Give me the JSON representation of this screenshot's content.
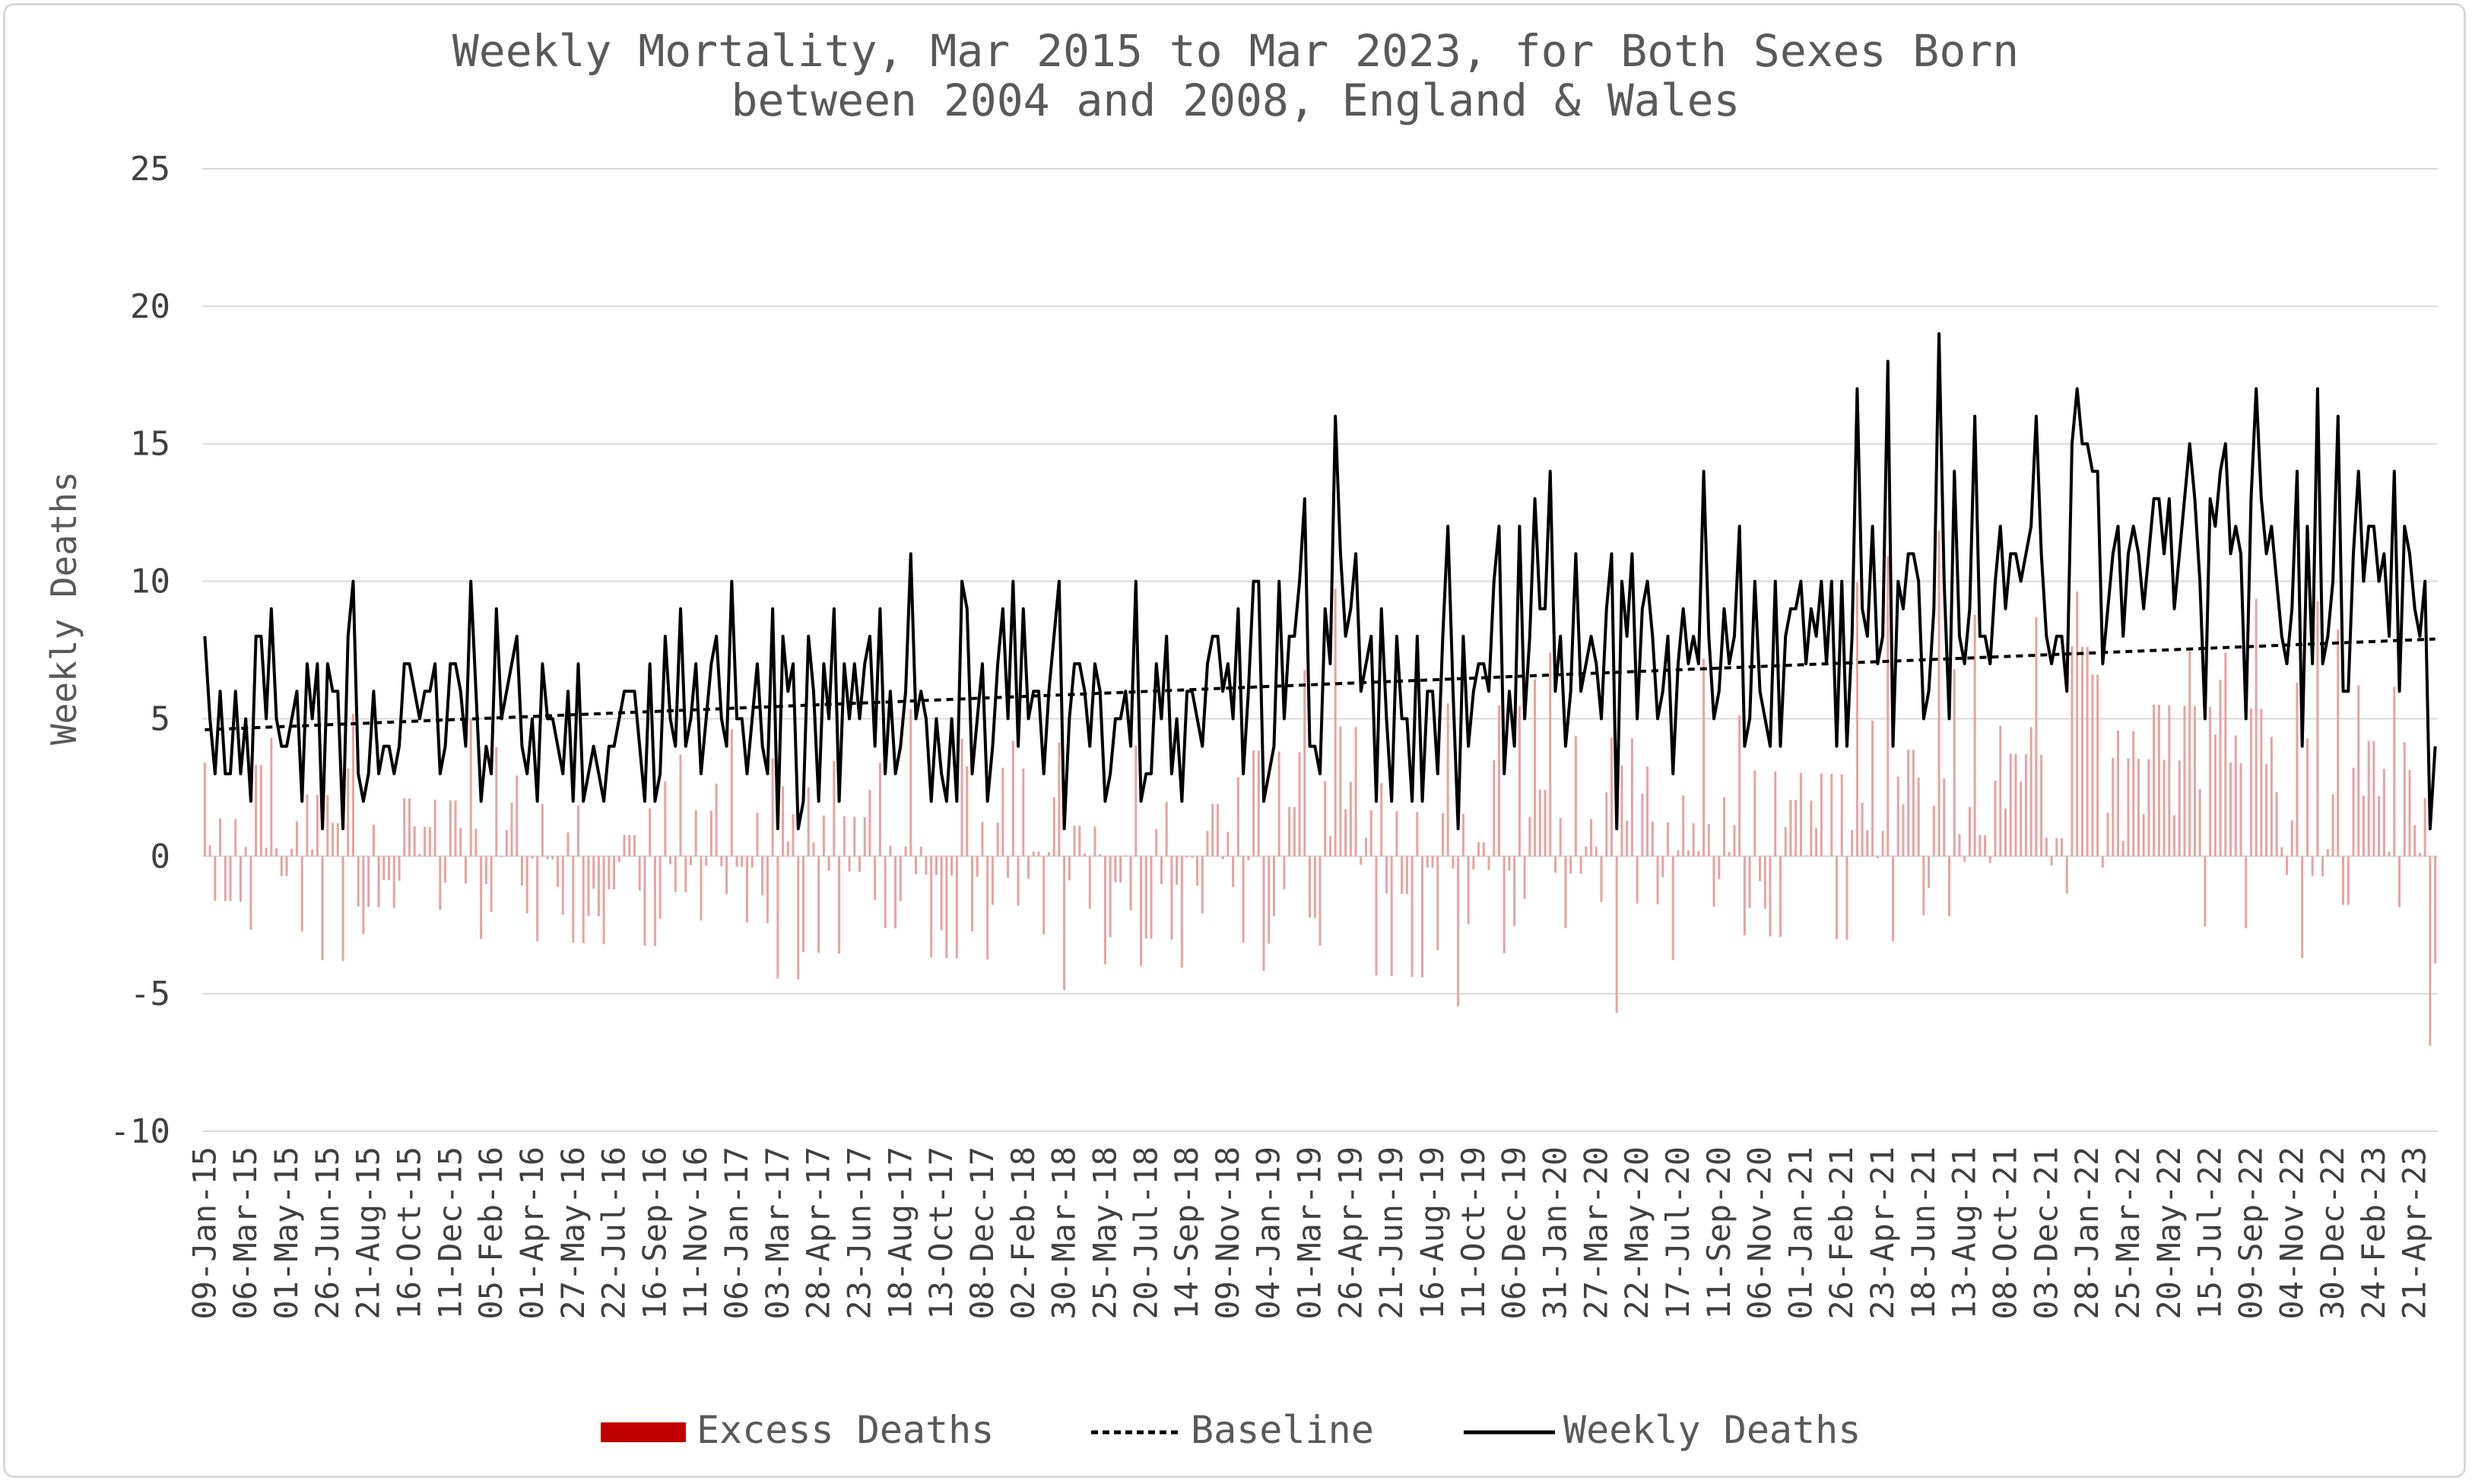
{
  "chart_data": {
    "type": "bar+line",
    "title": "Weekly Mortality, Mar 2015 to Mar 2023, for Both Sexes Born between 2004 and 2008, England & Wales",
    "title_lines": [
      "Weekly Mortality, Mar 2015 to Mar 2023, for Both Sexes Born",
      "between 2004 and 2008, England & Wales"
    ],
    "ylabel": "Weekly Deaths",
    "xlabel": "",
    "ylim": [
      -10,
      25
    ],
    "yticks": [
      -10,
      -5,
      0,
      5,
      10,
      15,
      20,
      25
    ],
    "ytick_labels": [
      "-10",
      "-5",
      "0",
      "5",
      "10",
      "15",
      "20",
      "25"
    ],
    "grid": "horizontal",
    "legend_position": "bottom",
    "x_tick_labels": [
      "09-Jan-15",
      "06-Mar-15",
      "01-May-15",
      "26-Jun-15",
      "21-Aug-15",
      "16-Oct-15",
      "11-Dec-15",
      "05-Feb-16",
      "01-Apr-16",
      "27-May-16",
      "22-Jul-16",
      "16-Sep-16",
      "11-Nov-16",
      "06-Jan-17",
      "03-Mar-17",
      "28-Apr-17",
      "23-Jun-17",
      "18-Aug-17",
      "13-Oct-17",
      "08-Dec-17",
      "02-Feb-18",
      "30-Mar-18",
      "25-May-18",
      "20-Jul-18",
      "14-Sep-18",
      "09-Nov-18",
      "04-Jan-19",
      "01-Mar-19",
      "26-Apr-19",
      "21-Jun-19",
      "16-Aug-19",
      "11-Oct-19",
      "06-Dec-19",
      "31-Jan-20",
      "27-Mar-20",
      "22-May-20",
      "17-Jul-20",
      "11-Sep-20",
      "06-Nov-20",
      "01-Jan-21",
      "26-Feb-21",
      "23-Apr-21",
      "18-Jun-21",
      "13-Aug-21",
      "08-Oct-21",
      "03-Dec-21",
      "28-Jan-22",
      "25-Mar-22",
      "20-May-22",
      "15-Jul-22",
      "09-Sep-22",
      "04-Nov-22",
      "30-Dec-22",
      "24-Feb-23",
      "21-Apr-23"
    ],
    "x_tick_every_weeks": 8,
    "baseline_start": 4.6,
    "baseline_end": 7.9,
    "weekly_deaths": [
      8,
      5,
      3,
      6,
      3,
      3,
      6,
      3,
      5,
      2,
      8,
      8,
      5,
      9,
      5,
      4,
      4,
      5,
      6,
      2,
      7,
      5,
      7,
      1,
      7,
      6,
      6,
      1,
      8,
      10,
      3,
      2,
      3,
      6,
      3,
      4,
      4,
      3,
      4,
      7,
      7,
      6,
      5,
      6,
      6,
      7,
      3,
      4,
      7,
      7,
      6,
      4,
      10,
      6,
      2,
      4,
      3,
      9,
      5,
      6,
      7,
      8,
      4,
      3,
      5,
      2,
      7,
      5,
      5,
      4,
      3,
      6,
      2,
      7,
      2,
      3,
      4,
      3,
      2,
      4,
      4,
      5,
      6,
      6,
      6,
      4,
      2,
      7,
      2,
      3,
      8,
      5,
      4,
      9,
      4,
      5,
      7,
      3,
      5,
      7,
      8,
      5,
      4,
      10,
      5,
      5,
      3,
      5,
      7,
      4,
      3,
      9,
      1,
      8,
      6,
      7,
      1,
      2,
      8,
      6,
      2,
      7,
      5,
      9,
      2,
      7,
      5,
      7,
      5,
      7,
      8,
      4,
      9,
      3,
      6,
      3,
      4,
      6,
      11,
      5,
      6,
      5,
      2,
      5,
      3,
      2,
      5,
      2,
      10,
      9,
      3,
      5,
      7,
      2,
      4,
      7,
      9,
      5,
      10,
      4,
      9,
      5,
      6,
      6,
      3,
      6,
      8,
      10,
      1,
      5,
      7,
      7,
      6,
      4,
      7,
      6,
      2,
      3,
      5,
      5,
      6,
      4,
      10,
      2,
      3,
      3,
      7,
      5,
      8,
      3,
      5,
      2,
      6,
      6,
      5,
      4,
      7,
      8,
      8,
      6,
      7,
      5,
      9,
      3,
      6,
      10,
      10,
      2,
      3,
      4,
      10,
      5,
      8,
      8,
      10,
      13,
      4,
      4,
      3,
      9,
      7,
      16,
      11,
      8,
      9,
      11,
      6,
      7,
      8,
      2,
      9,
      5,
      2,
      8,
      5,
      5,
      2,
      8,
      2,
      6,
      6,
      3,
      8,
      12,
      6,
      1,
      8,
      4,
      6,
      7,
      7,
      6,
      10,
      12,
      3,
      6,
      4,
      12,
      5,
      8,
      13,
      9,
      9,
      14,
      6,
      8,
      4,
      6,
      11,
      6,
      7,
      8,
      7,
      5,
      9,
      11,
      1,
      10,
      8,
      11,
      5,
      9,
      10,
      8,
      5,
      6,
      8,
      3,
      7,
      9,
      7,
      8,
      7,
      14,
      8,
      5,
      6,
      9,
      7,
      8,
      12,
      4,
      5,
      10,
      6,
      5,
      4,
      10,
      4,
      8,
      9,
      9,
      10,
      7,
      9,
      8,
      10,
      7,
      10,
      4,
      10,
      4,
      8,
      17,
      9,
      8,
      12,
      7,
      8,
      18,
      4,
      10,
      9,
      11,
      11,
      10,
      5,
      6,
      9,
      19,
      10,
      5,
      14,
      8,
      7,
      9,
      16,
      8,
      8,
      7,
      10,
      12,
      9,
      11,
      11,
      10,
      11,
      12,
      16,
      11,
      8,
      7,
      8,
      8,
      6,
      15,
      17,
      15,
      15,
      14,
      14,
      7,
      9,
      11,
      12,
      8,
      11,
      12,
      11,
      9,
      11,
      13,
      13,
      11,
      13,
      9,
      11,
      13,
      15,
      13,
      10,
      5,
      13,
      12,
      14,
      15,
      11,
      12,
      11,
      5,
      13,
      17,
      13,
      11,
      12,
      10,
      8,
      7,
      9,
      14,
      4,
      12,
      7,
      17,
      7,
      8,
      10,
      16,
      6,
      6,
      11,
      14,
      10,
      12,
      12,
      10,
      11,
      8,
      14,
      6,
      12,
      11,
      9,
      8,
      10,
      1,
      4
    ],
    "legend": [
      {
        "label": "Excess Deaths",
        "color": "#c00000"
      },
      {
        "label": "Baseline",
        "color": "#000000"
      },
      {
        "label": "Weekly Deaths",
        "color": "#000000"
      }
    ],
    "series": [
      {
        "name": "Excess Deaths",
        "kind": "bar",
        "color": "#c00000",
        "derived": "weekly_deaths - baseline"
      },
      {
        "name": "Baseline",
        "kind": "line",
        "style": "dashed",
        "color": "#000000"
      },
      {
        "name": "Weekly Deaths",
        "kind": "line",
        "style": "solid",
        "color": "#000000"
      }
    ]
  }
}
